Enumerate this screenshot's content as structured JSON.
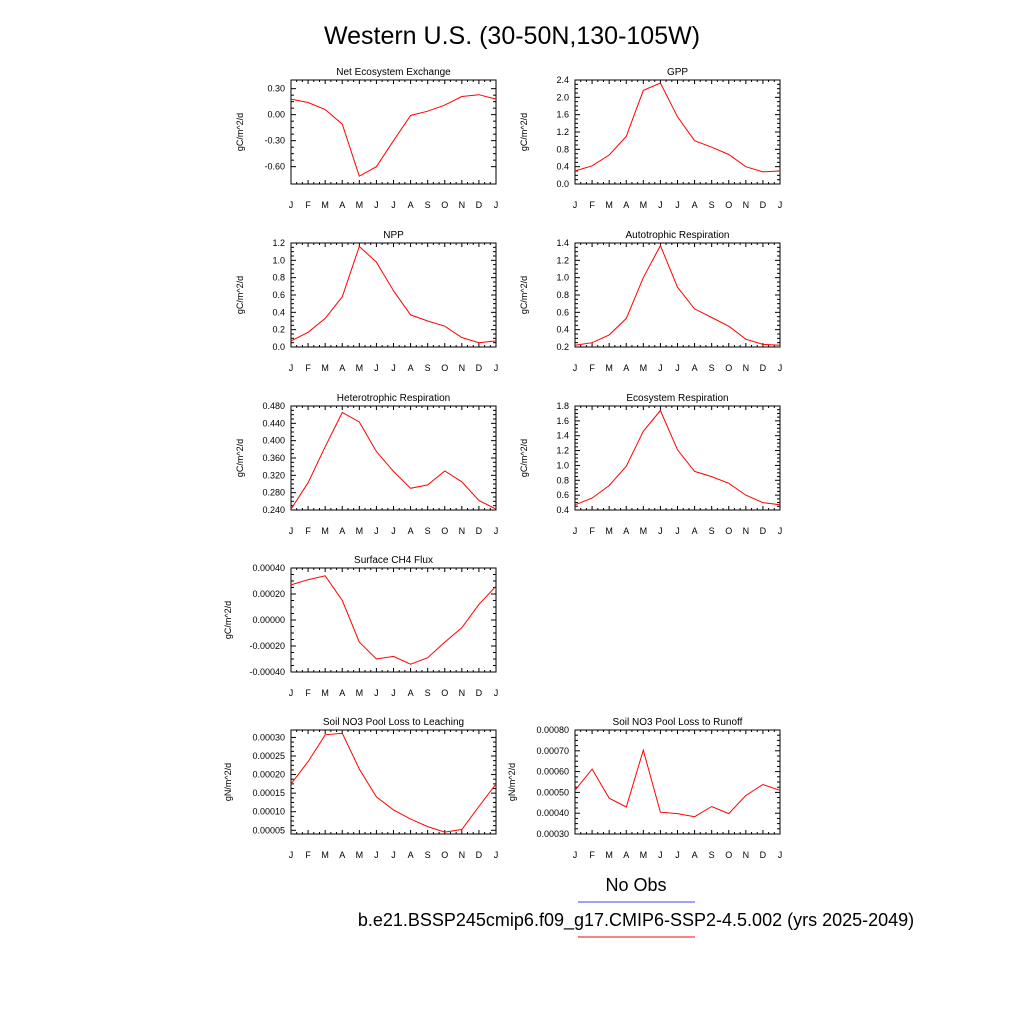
{
  "figure": {
    "title": "Western U.S. (30-50N,130-105W)",
    "legend": {
      "items": [
        {
          "label": "No Obs",
          "color": "#4040ff"
        },
        {
          "label": "b.e21.BSSP245cmip6.f09_g17.CMIP6-SSP2-4.5.002 (yrs 2025-2049)",
          "color": "#ff0000"
        }
      ]
    }
  },
  "chart_data": [
    {
      "type": "line",
      "title": "Net Ecosystem Exchange",
      "ylabel": "gC/m^2/d",
      "xlabel": "",
      "categories": [
        "J",
        "F",
        "M",
        "A",
        "M",
        "J",
        "J",
        "A",
        "S",
        "O",
        "N",
        "D",
        "J"
      ],
      "ylim": [
        -0.8,
        0.4
      ],
      "yticks": [
        0.3,
        0.0,
        -0.3,
        -0.6
      ],
      "ytick_labels": [
        "0.30",
        "0.00",
        "-0.30",
        "-0.60"
      ],
      "series": [
        {
          "color": "#ff0000",
          "values": [
            0.18,
            0.14,
            0.06,
            -0.11,
            -0.71,
            -0.6,
            -0.3,
            -0.01,
            0.04,
            0.11,
            0.21,
            0.23,
            0.18
          ]
        }
      ]
    },
    {
      "type": "line",
      "title": "GPP",
      "ylabel": "gC/m^2/d",
      "xlabel": "",
      "categories": [
        "J",
        "F",
        "M",
        "A",
        "M",
        "J",
        "J",
        "A",
        "S",
        "O",
        "N",
        "D",
        "J"
      ],
      "ylim": [
        0.0,
        2.4
      ],
      "yticks": [
        0.0,
        0.4,
        0.8,
        1.2,
        1.6,
        2.0,
        2.4
      ],
      "ytick_labels": [
        "0.0",
        "0.4",
        "0.8",
        "1.2",
        "1.6",
        "2.0",
        "2.4"
      ],
      "series": [
        {
          "color": "#ff0000",
          "values": [
            0.3,
            0.42,
            0.67,
            1.1,
            2.16,
            2.33,
            1.55,
            1.0,
            0.85,
            0.68,
            0.4,
            0.28,
            0.3
          ]
        }
      ]
    },
    {
      "type": "line",
      "title": "NPP",
      "ylabel": "gC/m^2/d",
      "xlabel": "",
      "categories": [
        "J",
        "F",
        "M",
        "A",
        "M",
        "J",
        "J",
        "A",
        "S",
        "O",
        "N",
        "D",
        "J"
      ],
      "ylim": [
        0.0,
        1.2
      ],
      "yticks": [
        0.0,
        0.2,
        0.4,
        0.6,
        0.8,
        1.0,
        1.2
      ],
      "ytick_labels": [
        "0.0",
        "0.2",
        "0.4",
        "0.6",
        "0.8",
        "1.0",
        "1.2"
      ],
      "series": [
        {
          "color": "#ff0000",
          "values": [
            0.07,
            0.17,
            0.33,
            0.58,
            1.16,
            0.98,
            0.65,
            0.37,
            0.3,
            0.24,
            0.11,
            0.05,
            0.07
          ]
        }
      ]
    },
    {
      "type": "line",
      "title": "Autotrophic Respiration",
      "ylabel": "gC/m^2/d",
      "xlabel": "",
      "categories": [
        "J",
        "F",
        "M",
        "A",
        "M",
        "J",
        "J",
        "A",
        "S",
        "O",
        "N",
        "D",
        "J"
      ],
      "ylim": [
        0.2,
        1.4
      ],
      "yticks": [
        0.2,
        0.4,
        0.6,
        0.8,
        1.0,
        1.2,
        1.4
      ],
      "ytick_labels": [
        "0.2",
        "0.4",
        "0.6",
        "0.8",
        "1.0",
        "1.2",
        "1.4"
      ],
      "series": [
        {
          "color": "#ff0000",
          "values": [
            0.22,
            0.25,
            0.34,
            0.53,
            1.0,
            1.37,
            0.89,
            0.64,
            0.54,
            0.44,
            0.29,
            0.23,
            0.22
          ]
        }
      ]
    },
    {
      "type": "line",
      "title": "Heterotrophic Respiration",
      "ylabel": "gC/m^2/d",
      "xlabel": "",
      "categories": [
        "J",
        "F",
        "M",
        "A",
        "M",
        "J",
        "J",
        "A",
        "S",
        "O",
        "N",
        "D",
        "J"
      ],
      "ylim": [
        0.24,
        0.48
      ],
      "yticks": [
        0.24,
        0.28,
        0.32,
        0.36,
        0.4,
        0.44,
        0.48
      ],
      "ytick_labels": [
        "0.240",
        "0.280",
        "0.320",
        "0.360",
        "0.400",
        "0.440",
        "0.480"
      ],
      "series": [
        {
          "color": "#ff0000",
          "values": [
            0.242,
            0.303,
            0.386,
            0.465,
            0.443,
            0.375,
            0.329,
            0.29,
            0.298,
            0.33,
            0.305,
            0.262,
            0.242
          ]
        }
      ]
    },
    {
      "type": "line",
      "title": "Ecosystem Respiration",
      "ylabel": "gC/m^2/d",
      "xlabel": "",
      "categories": [
        "J",
        "F",
        "M",
        "A",
        "M",
        "J",
        "J",
        "A",
        "S",
        "O",
        "N",
        "D",
        "J"
      ],
      "ylim": [
        0.4,
        1.8
      ],
      "yticks": [
        0.4,
        0.6,
        0.8,
        1.0,
        1.2,
        1.4,
        1.6,
        1.8
      ],
      "ytick_labels": [
        "0.4",
        "0.6",
        "0.8",
        "1.0",
        "1.2",
        "1.4",
        "1.6",
        "1.8"
      ],
      "series": [
        {
          "color": "#ff0000",
          "values": [
            0.47,
            0.56,
            0.73,
            0.99,
            1.46,
            1.74,
            1.21,
            0.92,
            0.85,
            0.76,
            0.6,
            0.5,
            0.47
          ]
        }
      ]
    },
    {
      "type": "line",
      "title": "Surface CH4 Flux",
      "ylabel": "gC/m^2/d",
      "xlabel": "",
      "categories": [
        "J",
        "F",
        "M",
        "A",
        "M",
        "J",
        "J",
        "A",
        "S",
        "O",
        "N",
        "D",
        "J"
      ],
      "ylim": [
        -0.0004,
        0.0004
      ],
      "yticks": [
        0.0004,
        0.0002,
        0.0,
        -0.0002,
        -0.0004
      ],
      "ytick_labels": [
        "0.00040",
        "0.00020",
        "0.00000",
        "-0.00020",
        "-0.00040"
      ],
      "series": [
        {
          "color": "#ff0000",
          "values": [
            0.00027,
            0.00031,
            0.00034,
            0.00015,
            -0.00017,
            -0.0003,
            -0.00028,
            -0.00034,
            -0.00029,
            -0.00017,
            -6e-05,
            0.00012,
            0.00026
          ]
        }
      ]
    },
    {
      "type": "line",
      "title": "Soil NO3 Pool Loss to Leaching",
      "ylabel": "gN/m^2/d",
      "xlabel": "",
      "categories": [
        "J",
        "F",
        "M",
        "A",
        "M",
        "J",
        "J",
        "A",
        "S",
        "O",
        "N",
        "D",
        "J"
      ],
      "ylim": [
        4e-05,
        0.00032
      ],
      "yticks": [
        5e-05,
        0.0001,
        0.00015,
        0.0002,
        0.00025,
        0.0003
      ],
      "ytick_labels": [
        "0.00005",
        "0.00010",
        "0.00015",
        "0.00020",
        "0.00025",
        "0.00030"
      ],
      "series": [
        {
          "color": "#ff0000",
          "values": [
            0.000175,
            0.000235,
            0.000307,
            0.000311,
            0.000215,
            0.00014,
            0.000105,
            8e-05,
            6e-05,
            4.5e-05,
            5.2e-05,
            0.000114,
            0.000175
          ]
        }
      ]
    },
    {
      "type": "line",
      "title": "Soil NO3 Pool Loss to Runoff",
      "ylabel": "gN/m^2/d",
      "xlabel": "",
      "categories": [
        "J",
        "F",
        "M",
        "A",
        "M",
        "J",
        "J",
        "A",
        "S",
        "O",
        "N",
        "D",
        "J"
      ],
      "ylim": [
        0.0003,
        0.0008
      ],
      "yticks": [
        0.0003,
        0.0004,
        0.0005,
        0.0006,
        0.0007,
        0.0008
      ],
      "ytick_labels": [
        "0.00030",
        "0.00040",
        "0.00050",
        "0.00060",
        "0.00070",
        "0.00080"
      ],
      "series": [
        {
          "color": "#ff0000",
          "values": [
            0.00051,
            0.000612,
            0.000472,
            0.00043,
            0.000703,
            0.000405,
            0.000398,
            0.000383,
            0.000432,
            0.000398,
            0.000485,
            0.000538,
            0.00051
          ]
        }
      ]
    }
  ]
}
